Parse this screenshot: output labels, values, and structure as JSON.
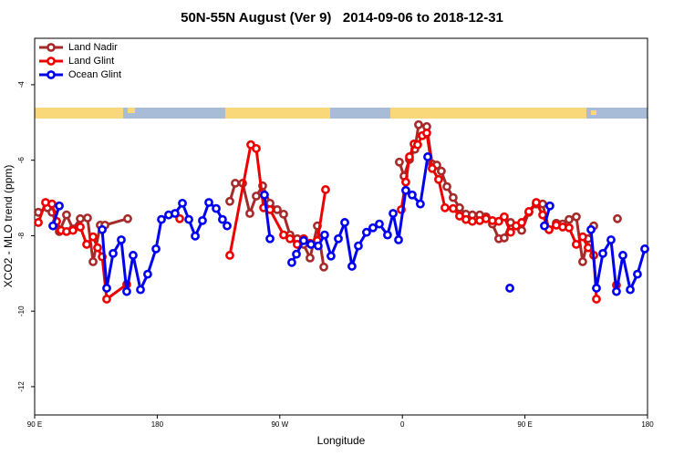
{
  "chart_data": {
    "type": "line",
    "title": "50N-55N August (Ver 9)   2014-09-06 to 2018-12-31",
    "x_label": "Longitude",
    "y_label": "XCO2 - MLO trend (ppm)",
    "xlim": [
      90,
      540
    ],
    "ylim": [
      -12.75,
      -2.77
    ],
    "xticks": [
      {
        "value": 90,
        "label": "90 E"
      },
      {
        "value": 180,
        "label": "180"
      },
      {
        "value": 270,
        "label": "90 W"
      },
      {
        "value": 360,
        "label": "0"
      },
      {
        "value": 450,
        "label": "90 E"
      },
      {
        "value": 540,
        "label": "180"
      }
    ],
    "yticks": [
      -4,
      -6,
      -8,
      -10,
      -12
    ],
    "grid": false,
    "legend": "top-left",
    "series": [
      {
        "name": "Land Nadir",
        "color": "#a52a2a",
        "x": [
          92.7,
          99.4,
          102.7,
          108.1,
          113.4,
          118.1,
          123.5,
          128.8,
          132.9,
          138.2,
          141.6,
          158.3,
          null,
          233.3,
          237.3,
          242.7,
          248.0,
          252.7,
          257.4,
          262.8,
          268.1,
          272.8,
          277.5,
          282.8,
          287.5,
          292.2,
          297.6,
          302.3,
          null,
          357.8,
          361.2,
          365.2,
          369.2,
          371.9,
          377.9,
          381.9,
          385.3,
          388.6,
          392.7,
          397.3,
          402.0,
          406.7,
          411.4,
          416.8,
          421.4,
          426.1,
          430.8,
          434.8,
          439.5,
          443.5,
          447.6,
          452.9,
          458.3,
          463.0,
          467.7,
          473.0,
          477.7,
          482.4,
          487.7,
          492.4,
          496.4,
          500.5,
          null,
          517.9
        ],
        "values": [
          -7.38,
          -7.26,
          -7.38,
          -7.89,
          -7.45,
          -7.82,
          -7.55,
          -7.53,
          -8.69,
          -7.72,
          -7.72,
          -7.55,
          null,
          -7.09,
          -6.61,
          -6.61,
          -7.41,
          -6.95,
          -6.68,
          -7.14,
          -7.31,
          -7.43,
          -7.98,
          -8.08,
          -8.23,
          -8.59,
          -7.74,
          -8.83,
          null,
          -6.05,
          -6.42,
          -5.98,
          -5.71,
          -5.06,
          -5.11,
          -6.1,
          -6.13,
          -6.29,
          -6.7,
          -6.99,
          -7.26,
          -7.43,
          -7.45,
          -7.45,
          -7.5,
          -7.69,
          -8.08,
          -8.06,
          -7.65,
          -7.74,
          -7.86,
          -7.38,
          -7.16,
          -7.16,
          -7.84,
          -7.67,
          -7.69,
          -7.57,
          -7.5,
          -8.69,
          -8.08,
          -7.74,
          null,
          -7.55
        ]
      },
      {
        "name": "Land Glint",
        "color": "#ee0000",
        "x": [
          92.7,
          98.0,
          102.7,
          106.1,
          109.4,
          113.4,
          118.1,
          123.5,
          128.2,
          132.9,
          136.2,
          139.6,
          142.9,
          157.6,
          null,
          196.5,
          null,
          233.3,
          248.7,
          252.7,
          258.1,
          262.8,
          272.8,
          277.5,
          282.8,
          287.5,
          292.2,
          297.6,
          303.6,
          null,
          359.2,
          362.5,
          365.2,
          368.6,
          371.2,
          374.6,
          377.9,
          381.9,
          386.6,
          391.3,
          397.3,
          402.0,
          406.7,
          411.4,
          416.8,
          421.4,
          426.1,
          430.8,
          434.8,
          439.5,
          443.5,
          447.6,
          452.9,
          458.3,
          463.0,
          467.7,
          473.0,
          477.7,
          482.4,
          487.7,
          492.4,
          496.4,
          500.5,
          502.5,
          null,
          517.2
        ],
        "values": [
          -7.65,
          -7.12,
          -7.16,
          -7.62,
          -7.86,
          -7.89,
          -7.86,
          -7.77,
          -8.23,
          -8.03,
          -8.32,
          -8.56,
          -9.68,
          -9.29,
          null,
          -7.55,
          null,
          -8.52,
          -5.59,
          -5.69,
          -7.26,
          -7.31,
          -7.98,
          -8.08,
          -8.23,
          -8.08,
          -8.2,
          -8.13,
          -6.78,
          null,
          -7.31,
          -6.58,
          -5.91,
          -5.57,
          -5.59,
          -5.35,
          -5.28,
          -6.22,
          -6.51,
          -7.26,
          -7.28,
          -7.48,
          -7.57,
          -7.62,
          -7.6,
          -7.55,
          -7.6,
          -7.62,
          -7.5,
          -7.91,
          -7.74,
          -7.65,
          -7.36,
          -7.12,
          -7.45,
          -7.84,
          -7.72,
          -7.77,
          -7.79,
          -8.23,
          -8.03,
          -8.32,
          -8.52,
          -9.68,
          null,
          -9.31
        ]
      },
      {
        "name": "Ocean Glint",
        "color": "#0000ee",
        "x": [
          103.4,
          108.1,
          null,
          139.6,
          142.9,
          147.6,
          153.6,
          157.6,
          162.3,
          167.7,
          173.0,
          179.1,
          183.1,
          188.4,
          193.1,
          198.5,
          203.2,
          207.9,
          213.2,
          217.9,
          223.3,
          227.9,
          231.3,
          null,
          258.7,
          262.8,
          null,
          278.8,
          282.2,
          287.5,
          292.9,
          298.2,
          302.9,
          307.6,
          313.0,
          317.7,
          323.0,
          327.7,
          333.7,
          338.4,
          343.1,
          349.1,
          353.2,
          357.2,
          362.5,
          367.2,
          373.2,
          378.6,
          null,
          438.9,
          null,
          464.3,
          468.3,
          null,
          498.5,
          502.5,
          507.2,
          513.2,
          517.2,
          521.9,
          527.3,
          532.6,
          538.0
        ],
        "values": [
          -7.74,
          -7.21,
          null,
          -7.84,
          -9.39,
          -8.47,
          -8.11,
          -9.48,
          -8.52,
          -9.43,
          -9.02,
          -8.35,
          -7.57,
          -7.45,
          -7.41,
          -7.14,
          -7.57,
          -8.01,
          -7.6,
          -7.12,
          -7.28,
          -7.57,
          -7.74,
          null,
          -6.92,
          -8.08,
          null,
          -8.71,
          -8.49,
          -8.13,
          -8.23,
          -8.27,
          -7.98,
          -8.54,
          -8.08,
          -7.65,
          -8.81,
          -8.27,
          -7.91,
          -7.79,
          -7.69,
          -7.98,
          -7.41,
          -8.11,
          -6.8,
          -6.92,
          -7.16,
          -5.91,
          null,
          -9.39,
          null,
          -7.74,
          -7.21,
          null,
          -7.84,
          -9.39,
          -8.47,
          -8.11,
          -9.48,
          -8.52,
          -9.43,
          -9.02,
          -8.35
        ]
      }
    ]
  }
}
